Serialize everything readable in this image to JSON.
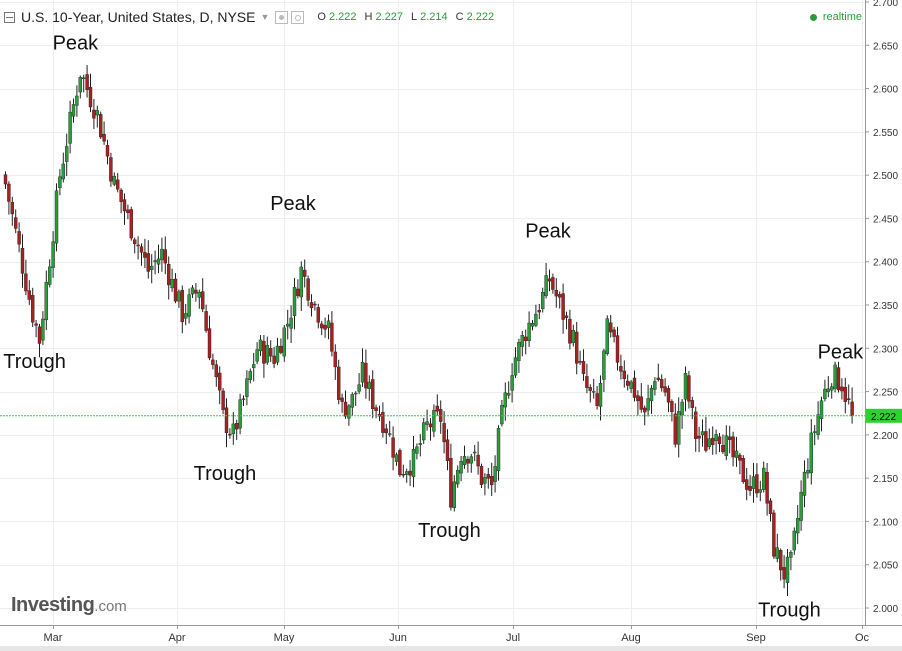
{
  "header": {
    "title": "U.S. 10-Year, United States, D, NYSE",
    "open_label": "O",
    "open": "2.222",
    "high_label": "H",
    "high": "2.227",
    "low_label": "L",
    "low": "2.214",
    "close_label": "C",
    "close": "2.222",
    "realtime": "realtime"
  },
  "logo": {
    "main": "Investing",
    "domain": ".com"
  },
  "colors": {
    "up": "#2a9d3a",
    "down": "#a82020",
    "last_price": "#2fd132",
    "grid": "#eeeeee"
  },
  "chart_data": {
    "type": "candlestick",
    "title": "U.S. 10-Year, United States, D, NYSE",
    "y_ticks": [
      2.0,
      2.05,
      2.1,
      2.15,
      2.2,
      2.25,
      2.3,
      2.35,
      2.4,
      2.45,
      2.5,
      2.55,
      2.6,
      2.65,
      2.7
    ],
    "y_tick_labels": [
      "2.000",
      "2.050",
      "2.100",
      "2.150",
      "2.200",
      "2.250",
      "2.300",
      "2.350",
      "2.400",
      "2.450",
      "2.500",
      "2.550",
      "2.600",
      "2.650",
      "2.700"
    ],
    "ylim": [
      1.99,
      2.7
    ],
    "x_labels": [
      "Mar",
      "Apr",
      "May",
      "Jun",
      "Jul",
      "Aug",
      "Sep",
      "Oc"
    ],
    "last_price": 2.222,
    "last_price_label": "2.222",
    "grid": true,
    "annotations": [
      {
        "text": "Peak",
        "x": 21,
        "y": 2.645
      },
      {
        "text": "Trough",
        "x": 9,
        "y": 2.277
      },
      {
        "text": "Trough",
        "x": 65,
        "y": 2.148
      },
      {
        "text": "Peak",
        "x": 85,
        "y": 2.46
      },
      {
        "text": "Trough",
        "x": 131,
        "y": 2.082
      },
      {
        "text": "Peak",
        "x": 160,
        "y": 2.428
      },
      {
        "text": "Peak",
        "x": 246,
        "y": 2.288
      },
      {
        "text": "Trough",
        "x": 231,
        "y": 1.99
      }
    ],
    "key_points": [
      {
        "x": 0,
        "y": 2.49
      },
      {
        "x": 8,
        "y": 2.34
      },
      {
        "x": 10,
        "y": 2.31
      },
      {
        "x": 16,
        "y": 2.5
      },
      {
        "x": 22,
        "y": 2.62
      },
      {
        "x": 27,
        "y": 2.57
      },
      {
        "x": 32,
        "y": 2.49
      },
      {
        "x": 38,
        "y": 2.43
      },
      {
        "x": 42,
        "y": 2.39
      },
      {
        "x": 46,
        "y": 2.41
      },
      {
        "x": 52,
        "y": 2.34
      },
      {
        "x": 57,
        "y": 2.37
      },
      {
        "x": 60,
        "y": 2.3
      },
      {
        "x": 64,
        "y": 2.22
      },
      {
        "x": 67,
        "y": 2.2
      },
      {
        "x": 70,
        "y": 2.24
      },
      {
        "x": 74,
        "y": 2.3
      },
      {
        "x": 79,
        "y": 2.29
      },
      {
        "x": 83,
        "y": 2.33
      },
      {
        "x": 87,
        "y": 2.39
      },
      {
        "x": 91,
        "y": 2.35
      },
      {
        "x": 95,
        "y": 2.32
      },
      {
        "x": 99,
        "y": 2.23
      },
      {
        "x": 102,
        "y": 2.24
      },
      {
        "x": 105,
        "y": 2.27
      },
      {
        "x": 108,
        "y": 2.24
      },
      {
        "x": 112,
        "y": 2.21
      },
      {
        "x": 116,
        "y": 2.16
      },
      {
        "x": 120,
        "y": 2.17
      },
      {
        "x": 124,
        "y": 2.21
      },
      {
        "x": 128,
        "y": 2.22
      },
      {
        "x": 131,
        "y": 2.13
      },
      {
        "x": 134,
        "y": 2.18
      },
      {
        "x": 137,
        "y": 2.18
      },
      {
        "x": 140,
        "y": 2.15
      },
      {
        "x": 143,
        "y": 2.14
      },
      {
        "x": 146,
        "y": 2.22
      },
      {
        "x": 149,
        "y": 2.28
      },
      {
        "x": 153,
        "y": 2.32
      },
      {
        "x": 157,
        "y": 2.35
      },
      {
        "x": 160,
        "y": 2.38
      },
      {
        "x": 163,
        "y": 2.35
      },
      {
        "x": 167,
        "y": 2.31
      },
      {
        "x": 170,
        "y": 2.26
      },
      {
        "x": 174,
        "y": 2.23
      },
      {
        "x": 177,
        "y": 2.32
      },
      {
        "x": 181,
        "y": 2.28
      },
      {
        "x": 185,
        "y": 2.25
      },
      {
        "x": 188,
        "y": 2.22
      },
      {
        "x": 191,
        "y": 2.27
      },
      {
        "x": 194,
        "y": 2.25
      },
      {
        "x": 197,
        "y": 2.2
      },
      {
        "x": 200,
        "y": 2.26
      },
      {
        "x": 203,
        "y": 2.2
      },
      {
        "x": 206,
        "y": 2.19
      },
      {
        "x": 209,
        "y": 2.21
      },
      {
        "x": 213,
        "y": 2.18
      },
      {
        "x": 216,
        "y": 2.16
      },
      {
        "x": 219,
        "y": 2.14
      },
      {
        "x": 223,
        "y": 2.15
      },
      {
        "x": 226,
        "y": 2.07
      },
      {
        "x": 229,
        "y": 2.04
      },
      {
        "x": 231,
        "y": 2.05
      },
      {
        "x": 234,
        "y": 2.13
      },
      {
        "x": 237,
        "y": 2.19
      },
      {
        "x": 240,
        "y": 2.24
      },
      {
        "x": 243,
        "y": 2.27
      },
      {
        "x": 246,
        "y": 2.26
      },
      {
        "x": 249,
        "y": 2.222
      }
    ]
  }
}
